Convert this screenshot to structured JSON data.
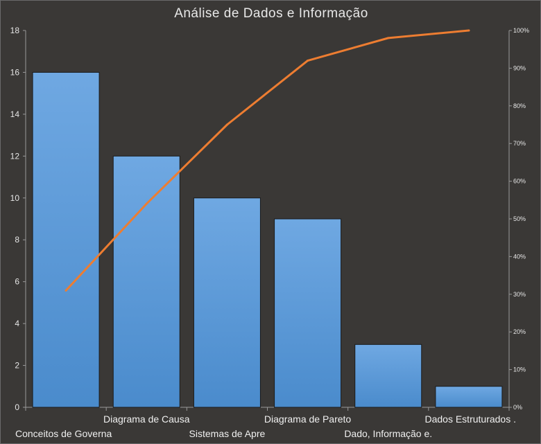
{
  "chart_data": {
    "type": "bar",
    "title": "Análise de Dados e Informação",
    "categories": [
      "Conceitos de Governa",
      "Diagrama de Causa",
      "Sistemas de Apre",
      "Diagrama de Pareto",
      "Dado, Informação e.",
      "Dados Estruturados ."
    ],
    "values": [
      16,
      12,
      10,
      9,
      3,
      1
    ],
    "cumulative_percent": [
      31,
      54,
      75,
      92,
      98,
      100
    ],
    "ylim": [
      0,
      18
    ],
    "yticks": [
      0,
      2,
      4,
      6,
      8,
      10,
      12,
      14,
      16,
      18
    ],
    "y2lim": [
      0,
      100
    ],
    "y2ticks": [
      "0%",
      "10%",
      "20%",
      "30%",
      "40%",
      "50%",
      "60%",
      "70%",
      "80%",
      "90%",
      "100%"
    ],
    "grid": false,
    "legend": "none",
    "colors": {
      "bar": "#5b9bd5",
      "line": "#ed7d31",
      "background": "#3a3836",
      "text": "#e6e6e6"
    }
  }
}
